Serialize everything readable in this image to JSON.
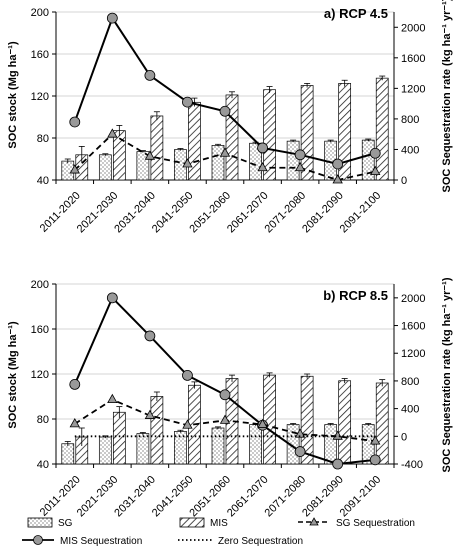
{
  "chart_data": [
    {
      "type": "bar",
      "title": "a) RCP 4.5",
      "ylabel": "SOC stock (Mg ha⁻¹)",
      "y2label": "SOC Sequestration rate (kg ha⁻¹ yr⁻¹)",
      "ylim": [
        40,
        200
      ],
      "yticks": [
        40,
        80,
        120,
        160,
        200
      ],
      "y2lim": [
        0,
        2200
      ],
      "y2ticks": [
        0,
        400,
        800,
        1200,
        1600,
        2000
      ],
      "categories": [
        "2011-2020",
        "2021-2030",
        "2031-2040",
        "2041-2050",
        "2051-2060",
        "2061-2070",
        "2071-2080",
        "2081-2090",
        "2091-2100"
      ],
      "bar_series": [
        {
          "name": "SG",
          "values": [
            58,
            64,
            67,
            69,
            73,
            75,
            77,
            77,
            78
          ],
          "errors": [
            2,
            1,
            1,
            1,
            1,
            1,
            1,
            1,
            1
          ]
        },
        {
          "name": "MIS",
          "values": [
            64,
            87,
            101,
            114,
            121,
            126,
            130,
            132,
            137
          ],
          "errors": [
            8,
            5,
            4,
            4,
            3,
            3,
            2,
            3,
            2
          ]
        }
      ],
      "line_series": [
        {
          "name": "MIS Sequestration",
          "values": [
            760,
            2120,
            1370,
            1020,
            900,
            420,
            330,
            210,
            350
          ]
        },
        {
          "name": "SG Sequestration",
          "values": [
            130,
            600,
            310,
            210,
            350,
            160,
            160,
            0,
            110
          ]
        }
      ]
    },
    {
      "type": "bar",
      "title": "b) RCP 8.5",
      "ylabel": "SOC stock (Mg ha⁻¹)",
      "y2label": "SOC Sequestration rate (kg ha⁻¹ yr⁻¹)",
      "ylim": [
        40,
        200
      ],
      "yticks": [
        40,
        80,
        120,
        160,
        200
      ],
      "y2lim": [
        -400,
        2200
      ],
      "y2ticks": [
        -400,
        0,
        400,
        800,
        1200,
        1600,
        2000
      ],
      "categories": [
        "2011-2020",
        "2021-2030",
        "2031-2040",
        "2041-2050",
        "2051-2060",
        "2061-2070",
        "2071-2080",
        "2081-2090",
        "2091-2100"
      ],
      "bar_series": [
        {
          "name": "SG",
          "values": [
            58,
            64,
            67,
            69,
            72,
            75,
            75,
            75,
            75
          ],
          "errors": [
            2,
            1,
            1,
            1,
            1,
            1,
            1,
            1,
            1
          ]
        },
        {
          "name": "MIS",
          "values": [
            64,
            86,
            100,
            110,
            116,
            119,
            118,
            114,
            112
          ],
          "errors": [
            8,
            5,
            4,
            3,
            3,
            2,
            2,
            2,
            3
          ]
        }
      ],
      "line_series": [
        {
          "name": "MIS Sequestration",
          "values": [
            750,
            2000,
            1450,
            880,
            600,
            160,
            -220,
            -400,
            -340
          ]
        },
        {
          "name": "SG Sequestration",
          "values": [
            180,
            530,
            300,
            160,
            230,
            170,
            30,
            0,
            -70
          ]
        },
        {
          "name": "Zero Sequestration",
          "values": [
            0,
            0,
            0,
            0,
            0,
            0,
            0,
            0,
            0
          ]
        }
      ]
    }
  ],
  "legend": {
    "position": "bottom",
    "items": [
      {
        "label": "SG",
        "kind": "bar-dots"
      },
      {
        "label": "MIS",
        "kind": "bar-hatch"
      },
      {
        "label": "SG Sequestration",
        "kind": "line-dash-triangle"
      },
      {
        "label": "MIS Sequestration",
        "kind": "line-solid-circle"
      },
      {
        "label": "Zero Sequestration",
        "kind": "line-dotted"
      }
    ]
  },
  "colors": {
    "bar_fill": "#ffffff",
    "bar_border": "#000000",
    "marker_fill": "#999999",
    "line": "#000000",
    "axis": "#000000",
    "grid": "#c8c8c8"
  }
}
